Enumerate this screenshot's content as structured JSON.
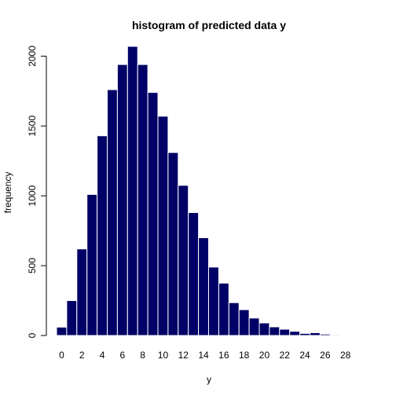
{
  "chart_data": {
    "type": "bar",
    "title": "histogram of predicted data y",
    "xlabel": "y",
    "ylabel": "frequency",
    "bar_color": "#000066",
    "categories": [
      0,
      1,
      2,
      3,
      4,
      5,
      6,
      7,
      8,
      9,
      10,
      11,
      12,
      13,
      14,
      15,
      16,
      17,
      18,
      19,
      20,
      21,
      22,
      23,
      24,
      25,
      26,
      27,
      28,
      29
    ],
    "values": [
      60,
      250,
      620,
      1010,
      1430,
      1760,
      1940,
      2070,
      1940,
      1740,
      1570,
      1310,
      1075,
      880,
      700,
      490,
      375,
      235,
      185,
      125,
      90,
      62,
      45,
      30,
      15,
      20,
      10,
      6,
      4,
      2
    ],
    "x_ticks": [
      0,
      2,
      4,
      6,
      8,
      10,
      12,
      14,
      16,
      18,
      20,
      22,
      24,
      26,
      28
    ],
    "x_tick_labels": [
      "0",
      "2",
      "4",
      "6",
      "8",
      "10",
      "12",
      "14",
      "16",
      "18",
      "20",
      "22",
      "24",
      "26",
      "28"
    ],
    "y_ticks": [
      0,
      500,
      1000,
      1500,
      2000
    ],
    "y_tick_labels": [
      "0",
      "500",
      "1000",
      "1500",
      "2000"
    ],
    "xlim": [
      -0.5,
      29.5
    ],
    "ylim": [
      0,
      2070
    ],
    "grid": false,
    "legend": "none"
  }
}
